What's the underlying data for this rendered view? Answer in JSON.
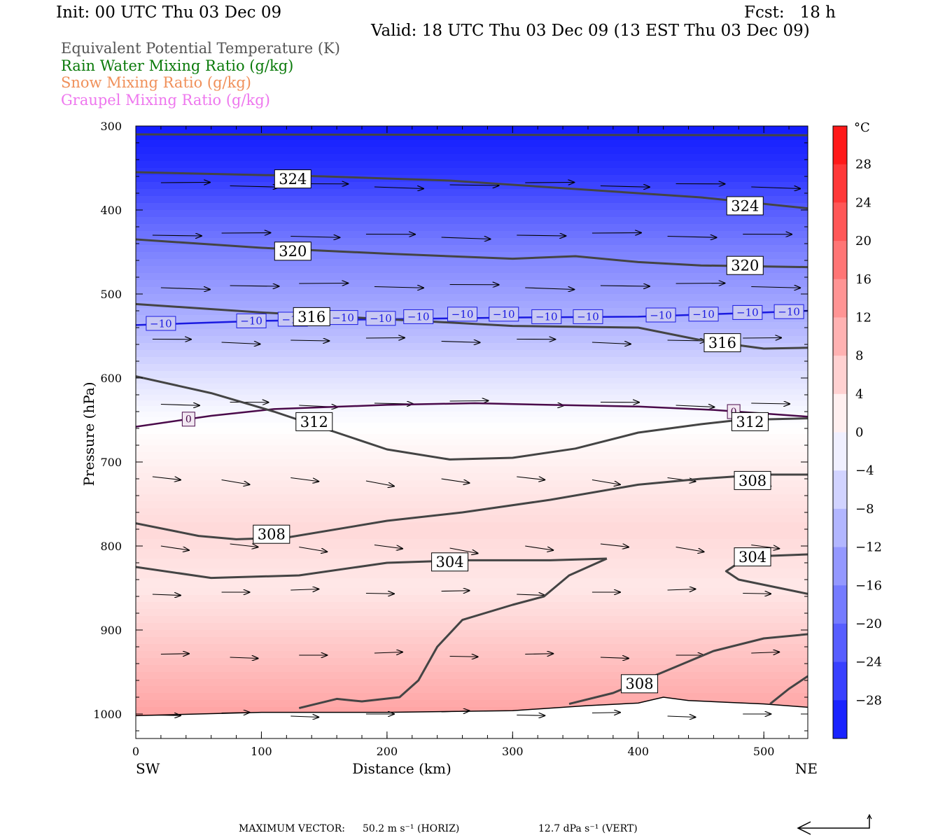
{
  "header": {
    "init": "Init: 00 UTC Thu 03 Dec 09",
    "fcst": "Fcst:   18 h",
    "valid": "Valid: 18 UTC Thu 03 Dec 09 (13 EST Thu 03 Dec 09)"
  },
  "legend": [
    {
      "label": "Equivalent Potential Temperature (K)",
      "color": "#444444"
    },
    {
      "label": "Rain Water Mixing Ratio (g/kg)",
      "color": "#0a7a0a"
    },
    {
      "label": "Snow Mixing Ratio (g/kg)",
      "color": "#f0905a"
    },
    {
      "label": "Graupel Mixing Ratio (g/kg)",
      "color": "#ee77ee"
    }
  ],
  "colorbar": {
    "unit": "°C",
    "ticks": [
      "28",
      "24",
      "20",
      "16",
      "12",
      "8",
      "4",
      "0",
      "−4",
      "−8",
      "−12",
      "−16",
      "−20",
      "−24",
      "−28"
    ],
    "min": -32,
    "max": 32
  },
  "footer": {
    "max_vector_label": "MAXIMUM VECTOR:",
    "horiz": "50.2 m s⁻¹ (HORIZ)",
    "vert": "12.7 dPa s⁻¹ (VERT)"
  },
  "chart_data": {
    "type": "cross-section",
    "xlabel": "Distance (km)",
    "ylabel": "Pressure (hPa)",
    "xlim": [
      0,
      535
    ],
    "ylim": [
      1030,
      300
    ],
    "xticks": [
      "0",
      "100",
      "200",
      "300",
      "400",
      "500"
    ],
    "yticks": [
      "300",
      "400",
      "500",
      "600",
      "700",
      "800",
      "900",
      "1000"
    ],
    "left_end": "SW",
    "right_end": "NE",
    "theta_e_contours": [
      {
        "value": 324,
        "points": [
          [
            0,
            355
          ],
          [
            150,
            360
          ],
          [
            250,
            365
          ],
          [
            350,
            375
          ],
          [
            450,
            385
          ],
          [
            535,
            398
          ]
        ],
        "labels": [
          [
            125,
            363
          ],
          [
            485,
            395
          ]
        ]
      },
      {
        "value": 320,
        "points": [
          [
            0,
            435
          ],
          [
            100,
            445
          ],
          [
            200,
            452
          ],
          [
            300,
            458
          ],
          [
            350,
            455
          ],
          [
            400,
            462
          ],
          [
            450,
            466
          ],
          [
            535,
            468
          ]
        ],
        "labels": [
          [
            125,
            449
          ],
          [
            485,
            466
          ]
        ]
      },
      {
        "value": 316,
        "points": [
          [
            0,
            512
          ],
          [
            100,
            522
          ],
          [
            200,
            530
          ],
          [
            300,
            538
          ],
          [
            400,
            540
          ],
          [
            450,
            555
          ],
          [
            500,
            565
          ],
          [
            535,
            564
          ]
        ],
        "labels": [
          [
            140,
            527
          ],
          [
            467,
            558
          ]
        ]
      },
      {
        "value": 312,
        "points": [
          [
            0,
            598
          ],
          [
            60,
            618
          ],
          [
            110,
            640
          ],
          [
            150,
            660
          ],
          [
            200,
            685
          ],
          [
            250,
            697
          ],
          [
            300,
            695
          ],
          [
            350,
            684
          ],
          [
            400,
            665
          ],
          [
            450,
            655
          ],
          [
            480,
            650
          ],
          [
            535,
            648
          ]
        ],
        "labels": [
          [
            142,
            652
          ],
          [
            489,
            652
          ]
        ]
      },
      {
        "value": 308,
        "points": [
          [
            0,
            773
          ],
          [
            50,
            788
          ],
          [
            80,
            792
          ],
          [
            120,
            790
          ],
          [
            200,
            770
          ],
          [
            260,
            760
          ],
          [
            330,
            745
          ],
          [
            400,
            727
          ],
          [
            450,
            720
          ],
          [
            500,
            715
          ],
          [
            535,
            715
          ]
        ],
        "labels": [
          [
            108,
            786
          ],
          [
            491,
            722
          ]
        ]
      },
      {
        "value": 304,
        "points": [
          [
            0,
            825
          ],
          [
            60,
            838
          ],
          [
            130,
            835
          ],
          [
            200,
            820
          ],
          [
            260,
            817
          ],
          [
            330,
            817
          ],
          [
            375,
            815
          ]
        ],
        "labels": [
          [
            250,
            819
          ]
        ]
      },
      {
        "value": 304,
        "points": [
          [
            535,
            810
          ],
          [
            500,
            812
          ],
          [
            480,
            820
          ],
          [
            470,
            830
          ],
          [
            480,
            840
          ],
          [
            535,
            857
          ]
        ],
        "labels": [
          [
            491,
            813
          ]
        ]
      },
      {
        "value": 304,
        "points": [
          [
            130,
            993
          ],
          [
            160,
            982
          ],
          [
            180,
            985
          ],
          [
            210,
            980
          ],
          [
            225,
            960
          ],
          [
            240,
            920
          ],
          [
            260,
            888
          ],
          [
            300,
            870
          ],
          [
            325,
            860
          ],
          [
            345,
            835
          ],
          [
            375,
            815
          ]
        ],
        "labels": []
      },
      {
        "value": 308,
        "points": [
          [
            345,
            988
          ],
          [
            380,
            975
          ],
          [
            420,
            950
          ],
          [
            460,
            925
          ],
          [
            500,
            910
          ],
          [
            535,
            905
          ]
        ],
        "labels": [
          [
            401,
            964
          ]
        ]
      },
      {
        "value": 308,
        "points": [
          [
            505,
            988
          ],
          [
            520,
            970
          ],
          [
            535,
            955
          ]
        ],
        "labels": []
      }
    ],
    "isotherms": [
      {
        "value": -10,
        "points": [
          [
            0,
            537
          ],
          [
            100,
            532
          ],
          [
            200,
            530
          ],
          [
            300,
            528
          ],
          [
            400,
            527
          ],
          [
            500,
            522
          ],
          [
            535,
            520
          ]
        ],
        "labels": [
          [
            20,
            535
          ],
          [
            92,
            532
          ],
          [
            125,
            530
          ],
          [
            165,
            528
          ],
          [
            195,
            529
          ],
          [
            225,
            527
          ],
          [
            260,
            524
          ],
          [
            293,
            524
          ],
          [
            327,
            527
          ],
          [
            360,
            527
          ],
          [
            418,
            525
          ],
          [
            452,
            524
          ],
          [
            487,
            522
          ],
          [
            520,
            521
          ]
        ]
      },
      {
        "value": 0,
        "points": [
          [
            0,
            658
          ],
          [
            60,
            645
          ],
          [
            110,
            637
          ],
          [
            200,
            632
          ],
          [
            270,
            630
          ],
          [
            330,
            632
          ],
          [
            400,
            634
          ],
          [
            460,
            638
          ],
          [
            535,
            646
          ]
        ],
        "labels": [
          [
            42,
            649
          ],
          [
            476,
            640
          ]
        ]
      }
    ],
    "temperature_profile": [
      {
        "p": 300,
        "t": -31
      },
      {
        "p": 350,
        "t": -28
      },
      {
        "p": 400,
        "t": -22
      },
      {
        "p": 450,
        "t": -17
      },
      {
        "p": 500,
        "t": -13
      },
      {
        "p": 550,
        "t": -9
      },
      {
        "p": 600,
        "t": -4
      },
      {
        "p": 640,
        "t": -1
      },
      {
        "p": 680,
        "t": 1
      },
      {
        "p": 730,
        "t": 3
      },
      {
        "p": 780,
        "t": 5
      },
      {
        "p": 850,
        "t": 3
      },
      {
        "p": 900,
        "t": 6
      },
      {
        "p": 950,
        "t": 9
      },
      {
        "p": 1000,
        "t": 12
      }
    ],
    "surface_pressure": [
      [
        0,
        1002
      ],
      [
        100,
        998
      ],
      [
        200,
        998
      ],
      [
        300,
        996
      ],
      [
        360,
        990
      ],
      [
        400,
        987
      ],
      [
        420,
        980
      ],
      [
        440,
        984
      ],
      [
        470,
        986
      ],
      [
        500,
        988
      ],
      [
        535,
        992
      ]
    ],
    "wind_vectors_note": "westerly winds, strongest aloft"
  }
}
